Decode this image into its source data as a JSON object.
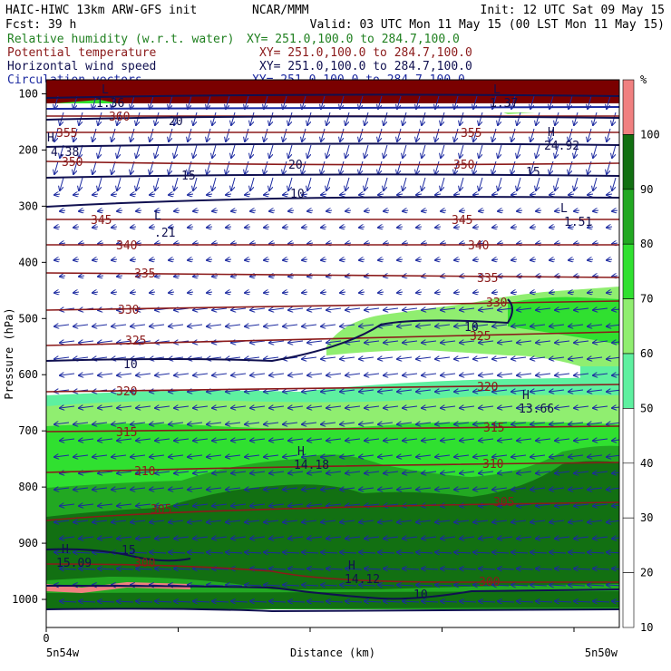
{
  "header": {
    "line1_left": "HAIC-HIWC 13km ARW-GFS init",
    "line1_mid": "NCAR/MMM",
    "line1_right": "Init: 12 UTC Sat 09 May 15",
    "line2_left": "Fcst:   39 h",
    "line2_right": "Valid: 03 UTC Mon 11 May 15 (00 LST Mon 11 May 15)"
  },
  "fields": [
    {
      "label": "Relative humidity (w.r.t. water)",
      "xy": "XY= 251.0,100.0 to 284.7,100.0",
      "color": "#208020"
    },
    {
      "label": "Potential temperature",
      "xy": "XY= 251.0,100.0 to 284.7,100.0",
      "color": "#8b1a1a"
    },
    {
      "label": "Horizontal wind speed",
      "xy": "XY= 251.0,100.0 to 284.7,100.0",
      "color": "#101050"
    },
    {
      "label": "Circulation vectors",
      "xy": "XY= 251.0,100.0 to 284.7,100.0",
      "color": "#1c2aa0"
    }
  ],
  "colorbar": {
    "unit": "%",
    "ticks": [
      "100",
      "90",
      "80",
      "70",
      "60",
      "50",
      "40",
      "30",
      "20",
      "10"
    ]
  },
  "chart_data": {
    "type": "heatmap",
    "xlabel": "Distance (km)",
    "ylabel": "Pressure (hPa)",
    "x_tick_labels": [
      "0"
    ],
    "x_end_labels": [
      "5n54w",
      "5n50w"
    ],
    "y_ticks": [
      100,
      200,
      300,
      400,
      500,
      600,
      700,
      800,
      900,
      1000
    ],
    "ylim": [
      1050,
      75
    ],
    "rh_bins": [
      {
        "min": 50,
        "max": 60,
        "color": "#5ef0a0"
      },
      {
        "min": 60,
        "max": 70,
        "color": "#90ee70"
      },
      {
        "min": 70,
        "max": 80,
        "color": "#30e030"
      },
      {
        "min": 80,
        "max": 90,
        "color": "#22a822"
      },
      {
        "min": 90,
        "max": 100,
        "color": "#127012"
      },
      {
        "min": 100,
        "max": 110,
        "color": "#7a0000"
      }
    ],
    "rh_supersat_color": "#f08080",
    "theta_contour_labels": [
      "350",
      "345",
      "340",
      "335",
      "330",
      "325",
      "320",
      "315",
      "310",
      "305",
      "300",
      "355",
      "360"
    ],
    "wind_speed_labels": [
      "10",
      "10",
      "15",
      "15",
      "20",
      "20",
      "10",
      "10",
      "10"
    ],
    "extrema": [
      {
        "kind": "H",
        "value": "13.66"
      },
      {
        "kind": "H",
        "value": "14.18"
      },
      {
        "kind": "H",
        "value": "14.12"
      },
      {
        "kind": "H",
        "value": "15.09"
      },
      {
        "kind": "H",
        "value": "24.92"
      },
      {
        "kind": "H",
        "value": "4.38"
      },
      {
        "kind": "L",
        "value": "1.51"
      },
      {
        "kind": "L",
        "value": ".21"
      },
      {
        "kind": "L",
        "value": "1.36"
      },
      {
        "kind": "L",
        "value": "1.37"
      }
    ]
  }
}
